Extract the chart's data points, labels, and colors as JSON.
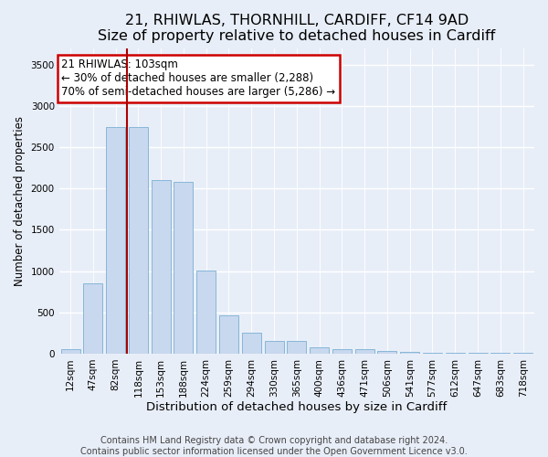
{
  "title": "21, RHIWLAS, THORNHILL, CARDIFF, CF14 9AD",
  "subtitle": "Size of property relative to detached houses in Cardiff",
  "xlabel": "Distribution of detached houses by size in Cardiff",
  "ylabel": "Number of detached properties",
  "categories": [
    "12sqm",
    "47sqm",
    "82sqm",
    "118sqm",
    "153sqm",
    "188sqm",
    "224sqm",
    "259sqm",
    "294sqm",
    "330sqm",
    "365sqm",
    "400sqm",
    "436sqm",
    "471sqm",
    "506sqm",
    "541sqm",
    "577sqm",
    "612sqm",
    "647sqm",
    "683sqm",
    "718sqm"
  ],
  "values": [
    60,
    850,
    2750,
    2750,
    2100,
    2080,
    1010,
    460,
    250,
    160,
    155,
    75,
    50,
    50,
    30,
    20,
    15,
    12,
    10,
    8,
    8
  ],
  "bar_color": "#c8d8ee",
  "bar_edge_color": "#7aafd4",
  "background_color": "#e8eef8",
  "grid_color": "#ffffff",
  "vline_color": "#aa0000",
  "vline_x": 2.5,
  "annotation_box_edge_color": "#cc0000",
  "annotation_text_line1": "21 RHIWLAS: 103sqm",
  "annotation_text_line2": "← 30% of detached houses are smaller (2,288)",
  "annotation_text_line3": "70% of semi-detached houses are larger (5,286) →",
  "ylim": [
    0,
    3700
  ],
  "yticks": [
    0,
    500,
    1000,
    1500,
    2000,
    2500,
    3000,
    3500
  ],
  "footer_line1": "Contains HM Land Registry data © Crown copyright and database right 2024.",
  "footer_line2": "Contains public sector information licensed under the Open Government Licence v3.0.",
  "title_fontsize": 11.5,
  "subtitle_fontsize": 10,
  "xlabel_fontsize": 9.5,
  "ylabel_fontsize": 8.5,
  "tick_fontsize": 7.5,
  "annotation_fontsize": 8.5,
  "footer_fontsize": 7
}
